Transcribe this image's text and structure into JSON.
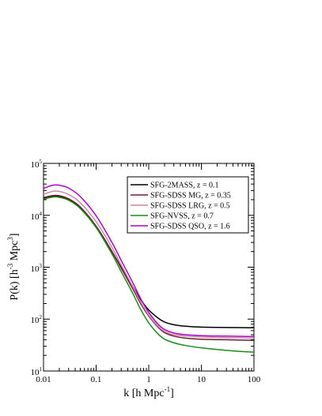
{
  "chart_data": {
    "type": "line",
    "xlabel": "k [h Mpc",
    "xlabel_sup": "-1",
    "xlabel_end": "]",
    "ylabel": "P(k) [h",
    "ylabel_sup1": "-3",
    "ylabel_mid": " Mpc",
    "ylabel_sup2": "3",
    "ylabel_end": "]",
    "x_scale": "log",
    "y_scale": "log",
    "xlim": [
      0.01,
      100
    ],
    "ylim": [
      10,
      100000
    ],
    "x_ticks": [
      {
        "value": 0.01,
        "label": "0.01"
      },
      {
        "value": 0.1,
        "label": "0.1"
      },
      {
        "value": 1,
        "label": "1"
      },
      {
        "value": 10,
        "label": "10"
      },
      {
        "value": 100,
        "label": "100"
      }
    ],
    "y_ticks": [
      {
        "value": 10,
        "base": "10",
        "exp": "1"
      },
      {
        "value": 100,
        "base": "10",
        "exp": "2"
      },
      {
        "value": 1000,
        "base": "10",
        "exp": "3"
      },
      {
        "value": 10000,
        "base": "10",
        "exp": "4"
      },
      {
        "value": 100000,
        "base": "10",
        "exp": "5"
      }
    ],
    "grid": false,
    "legend_position": "top-right",
    "series": [
      {
        "name": "SFG-2MASS, z = 0.1",
        "color": "#000000",
        "points": [
          [
            0.01,
            21000
          ],
          [
            0.015,
            23500
          ],
          [
            0.02,
            23000
          ],
          [
            0.03,
            20000
          ],
          [
            0.05,
            14000
          ],
          [
            0.1,
            6000
          ],
          [
            0.2,
            2000
          ],
          [
            0.3,
            1000
          ],
          [
            0.5,
            420
          ],
          [
            0.7,
            240
          ],
          [
            1,
            150
          ],
          [
            1.5,
            105
          ],
          [
            2,
            88
          ],
          [
            3,
            78
          ],
          [
            5,
            73
          ],
          [
            10,
            70
          ],
          [
            30,
            69
          ],
          [
            100,
            68
          ]
        ]
      },
      {
        "name": "SFG-SDSS MG, z = 0.35",
        "color": "#6b1f2e",
        "points": [
          [
            0.01,
            22000
          ],
          [
            0.015,
            24000
          ],
          [
            0.02,
            23800
          ],
          [
            0.03,
            20800
          ],
          [
            0.05,
            14500
          ],
          [
            0.1,
            6200
          ],
          [
            0.2,
            2000
          ],
          [
            0.3,
            960
          ],
          [
            0.5,
            380
          ],
          [
            0.7,
            200
          ],
          [
            1,
            115
          ],
          [
            1.5,
            70
          ],
          [
            2,
            55
          ],
          [
            3,
            47
          ],
          [
            5,
            43
          ],
          [
            10,
            41
          ],
          [
            30,
            40
          ],
          [
            100,
            39
          ]
        ]
      },
      {
        "name": "SFG-SDSS LRG, z = 0.5",
        "color": "#c58ca0",
        "points": [
          [
            0.01,
            25500
          ],
          [
            0.015,
            29000
          ],
          [
            0.02,
            28800
          ],
          [
            0.03,
            25200
          ],
          [
            0.05,
            17500
          ],
          [
            0.1,
            7500
          ],
          [
            0.2,
            2400
          ],
          [
            0.3,
            1100
          ],
          [
            0.5,
            420
          ],
          [
            0.7,
            215
          ],
          [
            1,
            120
          ],
          [
            1.5,
            73
          ],
          [
            2,
            58
          ],
          [
            3,
            50
          ],
          [
            5,
            47
          ],
          [
            10,
            45
          ],
          [
            30,
            44
          ],
          [
            100,
            43
          ]
        ]
      },
      {
        "name": "SFG-NVSS, z = 0.7",
        "color": "#1a8c1a",
        "points": [
          [
            0.01,
            20500
          ],
          [
            0.015,
            22500
          ],
          [
            0.02,
            22200
          ],
          [
            0.03,
            19500
          ],
          [
            0.05,
            13500
          ],
          [
            0.1,
            5800
          ],
          [
            0.2,
            1800
          ],
          [
            0.3,
            820
          ],
          [
            0.5,
            310
          ],
          [
            0.7,
            155
          ],
          [
            1,
            85
          ],
          [
            1.5,
            52
          ],
          [
            2,
            41
          ],
          [
            3,
            35
          ],
          [
            5,
            31
          ],
          [
            10,
            28
          ],
          [
            30,
            25
          ],
          [
            100,
            23
          ]
        ]
      },
      {
        "name": "SFG-SDSS QSO, z = 1.6",
        "color": "#b000d0",
        "points": [
          [
            0.01,
            33000
          ],
          [
            0.015,
            38000
          ],
          [
            0.02,
            38000
          ],
          [
            0.03,
            33500
          ],
          [
            0.05,
            23000
          ],
          [
            0.1,
            9800
          ],
          [
            0.2,
            3000
          ],
          [
            0.3,
            1350
          ],
          [
            0.5,
            500
          ],
          [
            0.7,
            250
          ],
          [
            1,
            135
          ],
          [
            1.5,
            80
          ],
          [
            2,
            63
          ],
          [
            3,
            54
          ],
          [
            5,
            50
          ],
          [
            10,
            48
          ],
          [
            30,
            47
          ],
          [
            100,
            46
          ]
        ]
      }
    ]
  }
}
